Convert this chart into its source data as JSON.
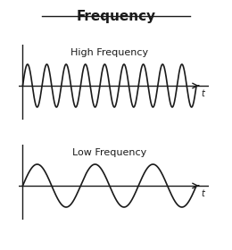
{
  "title": "Frequency",
  "high_freq_label": "High Frequency",
  "low_freq_label": "Low Frequency",
  "high_freq_cycles": 9,
  "low_freq_cycles": 3,
  "t_label": "t",
  "wave_color": "#1a1a1a",
  "axis_color": "#1a1a1a",
  "bg_color": "#ffffff",
  "amplitude": 1.0,
  "title_fontsize": 11,
  "label_fontsize": 8,
  "t_fontsize": 7,
  "line_width": 1.2,
  "axis_lw": 1.0
}
